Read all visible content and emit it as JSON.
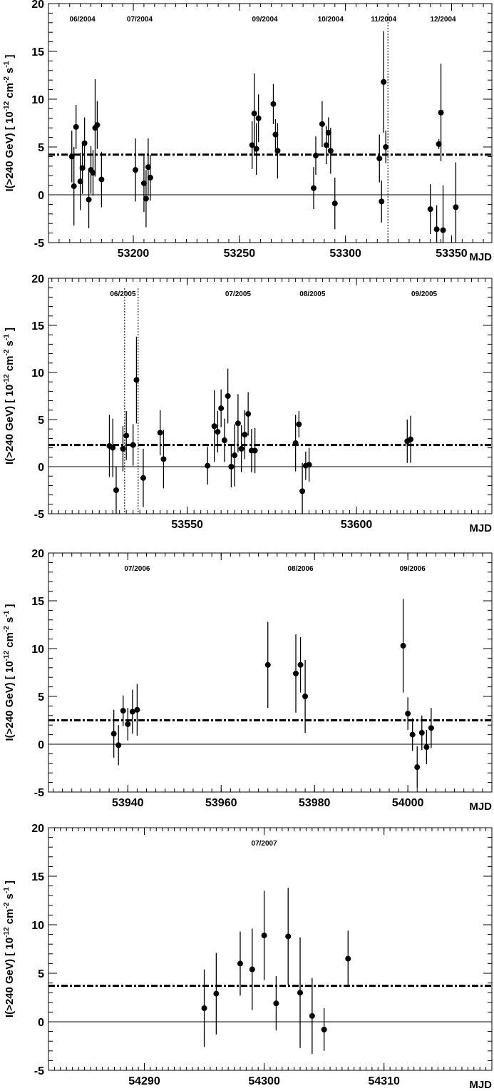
{
  "chart_data": [
    {
      "type": "scatter",
      "xlabel": "MJD",
      "ylabel": "I(>240 GeV) [ 10^-12 cm^-2 s^-1 ]",
      "xlim": [
        53160,
        53369
      ],
      "ylim": [
        -5,
        20
      ],
      "x_ticks": [
        53200,
        53250,
        53300,
        53350
      ],
      "y_ticks": [
        -5,
        0,
        5,
        10,
        15,
        20
      ],
      "mean_level": 4.2,
      "vlines": [
        53320
      ],
      "month_labels": [
        {
          "text": "06/2004",
          "x": 53176
        },
        {
          "text": "07/2004",
          "x": 53203
        },
        {
          "text": "09/2004",
          "x": 53262
        },
        {
          "text": "10/2004",
          "x": 53293
        },
        {
          "text": "11/2004",
          "x": 53318
        },
        {
          "text": "12/2004",
          "x": 53346
        }
      ],
      "points": [
        {
          "x": 53171,
          "y": 4.0,
          "err": 2.7
        },
        {
          "x": 53172,
          "y": 0.9,
          "err": 4.1
        },
        {
          "x": 53173,
          "y": 7.1,
          "err": 2.3
        },
        {
          "x": 53175,
          "y": 1.4,
          "err": 3.0
        },
        {
          "x": 53176,
          "y": 2.8,
          "err": 2.7
        },
        {
          "x": 53177,
          "y": 5.4,
          "err": 2.7
        },
        {
          "x": 53179,
          "y": -0.5,
          "err": 3.0
        },
        {
          "x": 53180,
          "y": 2.6,
          "err": 2.5
        },
        {
          "x": 53181,
          "y": 2.3,
          "err": 2.4
        },
        {
          "x": 53182,
          "y": 7.0,
          "err": 5.1
        },
        {
          "x": 53183,
          "y": 7.3,
          "err": 2.5
        },
        {
          "x": 53185,
          "y": 1.6,
          "err": 2.9
        },
        {
          "x": 53201,
          "y": 2.6,
          "err": 3.3
        },
        {
          "x": 53205,
          "y": 1.2,
          "err": 3.0
        },
        {
          "x": 53206,
          "y": -0.4,
          "err": 3.0
        },
        {
          "x": 53207,
          "y": 2.9,
          "err": 3.0
        },
        {
          "x": 53208,
          "y": 1.8,
          "err": 2.4
        },
        {
          "x": 53256,
          "y": 5.2,
          "err": 2.5
        },
        {
          "x": 53257,
          "y": 8.5,
          "err": 4.2
        },
        {
          "x": 53258,
          "y": 4.8,
          "err": 2.7
        },
        {
          "x": 53259,
          "y": 8.0,
          "err": 2.5
        },
        {
          "x": 53266,
          "y": 9.5,
          "err": 2.1
        },
        {
          "x": 53267,
          "y": 6.3,
          "err": 1.6
        },
        {
          "x": 53268,
          "y": 4.6,
          "err": 2.9
        },
        {
          "x": 53285,
          "y": 0.7,
          "err": 2.2
        },
        {
          "x": 53286,
          "y": 4.1,
          "err": 2.0
        },
        {
          "x": 53289,
          "y": 7.4,
          "err": 2.4
        },
        {
          "x": 53291,
          "y": 5.2,
          "err": 2.0
        },
        {
          "x": 53292,
          "y": 6.5,
          "err": 1.6
        },
        {
          "x": 53293,
          "y": 4.6,
          "err": 2.4
        },
        {
          "x": 53295,
          "y": -0.9,
          "err": 2.7
        },
        {
          "x": 53316,
          "y": 3.8,
          "err": 2.5
        },
        {
          "x": 53317,
          "y": -0.7,
          "err": 2.2
        },
        {
          "x": 53318,
          "y": 11.8,
          "err": 5.3
        },
        {
          "x": 53319,
          "y": 5.0,
          "err": 1.7
        },
        {
          "x": 53340,
          "y": -1.5,
          "err": 2.6
        },
        {
          "x": 53343,
          "y": -3.6,
          "err": 2.5
        },
        {
          "x": 53344,
          "y": 5.3,
          "err": 0.5
        },
        {
          "x": 53345,
          "y": 8.6,
          "err": 5.1
        },
        {
          "x": 53346,
          "y": -3.7,
          "err": 4.7
        },
        {
          "x": 53352,
          "y": -1.3,
          "err": 4.7
        }
      ]
    },
    {
      "type": "scatter",
      "xlabel": "MJD",
      "ylabel": "I(>240 GeV) [ 10^-12 cm^-2 s^-1 ]",
      "xlim": [
        53509,
        53640
      ],
      "ylim": [
        -5,
        20
      ],
      "x_ticks": [
        53550,
        53600
      ],
      "y_ticks": [
        -5,
        0,
        5,
        10,
        15,
        20
      ],
      "mean_level": 2.3,
      "vlines": [
        53531.5,
        53535.5
      ],
      "month_labels": [
        {
          "text": "06/2005",
          "x": 53531
        },
        {
          "text": "07/2005",
          "x": 53565
        },
        {
          "text": "08/2005",
          "x": 53587
        },
        {
          "text": "09/2005",
          "x": 53620
        }
      ],
      "points": [
        {
          "x": 53527,
          "y": 2.2,
          "err": 3.3
        },
        {
          "x": 53528,
          "y": 2.0,
          "err": 3.1
        },
        {
          "x": 53529,
          "y": -2.5,
          "err": 2.5
        },
        {
          "x": 53531,
          "y": 1.9,
          "err": 2.4
        },
        {
          "x": 53532,
          "y": 3.3,
          "err": 2.6
        },
        {
          "x": 53534,
          "y": 2.3,
          "err": 2.2
        },
        {
          "x": 53535,
          "y": 9.2,
          "err": 4.6
        },
        {
          "x": 53537,
          "y": -1.2,
          "err": 3.1
        },
        {
          "x": 53542,
          "y": 3.6,
          "err": 2.4
        },
        {
          "x": 53543,
          "y": 0.8,
          "err": 3.1
        },
        {
          "x": 53556,
          "y": 0.1,
          "err": 2.0
        },
        {
          "x": 53558,
          "y": 4.3,
          "err": 3.8
        },
        {
          "x": 53559,
          "y": 3.7,
          "err": 2.2
        },
        {
          "x": 53560,
          "y": 6.2,
          "err": 2.0
        },
        {
          "x": 53561,
          "y": 2.8,
          "err": 2.3
        },
        {
          "x": 53562,
          "y": 7.5,
          "err": 2.9
        },
        {
          "x": 53563,
          "y": 0.0,
          "err": 2.2
        },
        {
          "x": 53564,
          "y": 1.2,
          "err": 3.3
        },
        {
          "x": 53565,
          "y": 4.6,
          "err": 3.1
        },
        {
          "x": 53566,
          "y": 1.9,
          "err": 2.5
        },
        {
          "x": 53567,
          "y": 3.4,
          "err": 2.6
        },
        {
          "x": 53568,
          "y": 5.6,
          "err": 2.3
        },
        {
          "x": 53569,
          "y": 1.7,
          "err": 2.3
        },
        {
          "x": 53570,
          "y": 1.7,
          "err": 2.4
        },
        {
          "x": 53582,
          "y": 2.5,
          "err": 3.0
        },
        {
          "x": 53583,
          "y": 4.5,
          "err": 1.4
        },
        {
          "x": 53584,
          "y": -2.6,
          "err": 3.0
        },
        {
          "x": 53585,
          "y": 0.1,
          "err": 1.5
        },
        {
          "x": 53586,
          "y": 0.2,
          "err": 1.8
        },
        {
          "x": 53615,
          "y": 2.7,
          "err": 2.3
        },
        {
          "x": 53616,
          "y": 2.9,
          "err": 2.5
        }
      ]
    },
    {
      "type": "scatter",
      "xlabel": "MJD",
      "ylabel": "I(>240 GeV) [ 10^-12 cm^-2 s^-1 ]",
      "xlim": [
        53923,
        54018
      ],
      "ylim": [
        -5,
        20
      ],
      "x_ticks": [
        53940,
        53960,
        53980,
        54000
      ],
      "y_ticks": [
        -5,
        0,
        5,
        10,
        15,
        20
      ],
      "mean_level": 2.5,
      "vlines": [],
      "month_labels": [
        {
          "text": "07/2006",
          "x": 53942
        },
        {
          "text": "08/2006",
          "x": 53977
        },
        {
          "text": "09/2006",
          "x": 54001
        }
      ],
      "points": [
        {
          "x": 53937,
          "y": 1.1,
          "err": 2.5
        },
        {
          "x": 53938,
          "y": -0.1,
          "err": 2.1
        },
        {
          "x": 53939,
          "y": 3.5,
          "err": 1.6
        },
        {
          "x": 53940,
          "y": 2.1,
          "err": 1.7
        },
        {
          "x": 53941,
          "y": 3.4,
          "err": 2.3
        },
        {
          "x": 53942,
          "y": 3.6,
          "err": 2.7
        },
        {
          "x": 53970,
          "y": 8.3,
          "err": 4.5
        },
        {
          "x": 53976,
          "y": 7.4,
          "err": 4.1
        },
        {
          "x": 53977,
          "y": 8.3,
          "err": 2.9
        },
        {
          "x": 53978,
          "y": 5.0,
          "err": 3.8
        },
        {
          "x": 53999,
          "y": 10.3,
          "err": 4.9
        },
        {
          "x": 54000,
          "y": 3.2,
          "err": 1.7
        },
        {
          "x": 54001,
          "y": 1.0,
          "err": 1.7
        },
        {
          "x": 54002,
          "y": -2.4,
          "err": 2.2
        },
        {
          "x": 54003,
          "y": 1.2,
          "err": 1.8
        },
        {
          "x": 54004,
          "y": -0.3,
          "err": 1.8
        },
        {
          "x": 54005,
          "y": 1.7,
          "err": 2.1
        }
      ]
    },
    {
      "type": "scatter",
      "xlabel": "MJD",
      "ylabel": "I(>240 GeV) [ 10^-12 cm^-2 s^-1 ]",
      "xlim": [
        54282,
        54319
      ],
      "ylim": [
        -5,
        20
      ],
      "x_ticks": [
        54290,
        54300,
        54310
      ],
      "y_ticks": [
        -5,
        0,
        5,
        10,
        15,
        20
      ],
      "mean_level": 3.7,
      "vlines": [],
      "month_labels": [
        {
          "text": "07/2007",
          "x": 54300
        }
      ],
      "points": [
        {
          "x": 54295,
          "y": 1.4,
          "err": 4.0
        },
        {
          "x": 54296,
          "y": 2.9,
          "err": 4.2
        },
        {
          "x": 54298,
          "y": 6.0,
          "err": 3.3
        },
        {
          "x": 54299,
          "y": 5.4,
          "err": 4.2
        },
        {
          "x": 54300,
          "y": 8.9,
          "err": 4.6
        },
        {
          "x": 54301,
          "y": 1.9,
          "err": 2.8
        },
        {
          "x": 54302,
          "y": 8.8,
          "err": 5.0
        },
        {
          "x": 54303,
          "y": 3.0,
          "err": 5.7
        },
        {
          "x": 54304,
          "y": 0.6,
          "err": 3.9
        },
        {
          "x": 54305,
          "y": -0.8,
          "err": 2.2
        },
        {
          "x": 54307,
          "y": 6.5,
          "err": 2.9
        }
      ]
    }
  ]
}
